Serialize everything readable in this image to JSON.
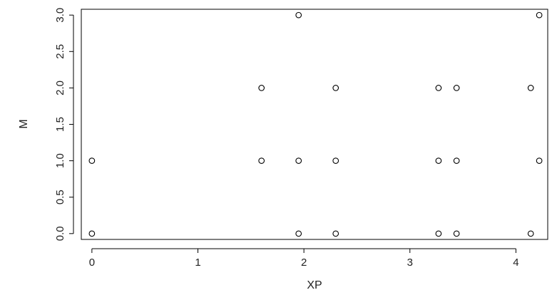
{
  "chart_data": {
    "type": "scatter",
    "title": "",
    "xlabel": "XP",
    "ylabel": "M",
    "xlim": [
      -0.1,
      4.3
    ],
    "ylim": [
      -0.08,
      3.08
    ],
    "x_ticks": [
      0,
      1,
      2,
      3,
      4
    ],
    "x_tick_labels": [
      "0",
      "1",
      "2",
      "3",
      "4"
    ],
    "y_ticks": [
      0.0,
      0.5,
      1.0,
      1.5,
      2.0,
      2.5,
      3.0
    ],
    "y_tick_labels": [
      "0.0",
      "0.5",
      "1.0",
      "1.5",
      "2.0",
      "2.5",
      "3.0"
    ],
    "grid": false,
    "legend": "none",
    "marker": "open-circle",
    "series": [
      {
        "points": [
          {
            "x": 0.0,
            "y": 1
          },
          {
            "x": 0.0,
            "y": 0
          },
          {
            "x": 1.6,
            "y": 2
          },
          {
            "x": 1.6,
            "y": 1
          },
          {
            "x": 1.95,
            "y": 3
          },
          {
            "x": 1.95,
            "y": 1
          },
          {
            "x": 1.95,
            "y": 0
          },
          {
            "x": 2.3,
            "y": 2
          },
          {
            "x": 2.3,
            "y": 1
          },
          {
            "x": 2.3,
            "y": 0
          },
          {
            "x": 3.27,
            "y": 2
          },
          {
            "x": 3.27,
            "y": 1
          },
          {
            "x": 3.27,
            "y": 0
          },
          {
            "x": 3.44,
            "y": 2
          },
          {
            "x": 3.44,
            "y": 1
          },
          {
            "x": 3.44,
            "y": 0
          },
          {
            "x": 4.14,
            "y": 2
          },
          {
            "x": 4.14,
            "y": 0
          },
          {
            "x": 4.22,
            "y": 3
          },
          {
            "x": 4.22,
            "y": 1
          }
        ]
      }
    ]
  }
}
